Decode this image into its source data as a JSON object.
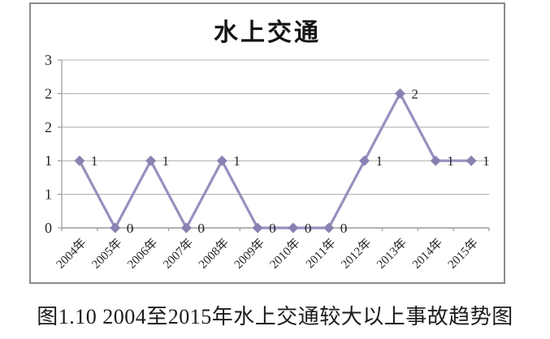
{
  "figure": {
    "caption": "图1.10 2004至2015年水上交通较大以上事故趋势图"
  },
  "chart_data": {
    "type": "line",
    "title": "水上交通",
    "categories": [
      "2004年",
      "2005年",
      "2006年",
      "2007年",
      "2008年",
      "2009年",
      "2010年",
      "2011年",
      "2012年",
      "2013年",
      "2014年",
      "2015年"
    ],
    "values": [
      1,
      0,
      1,
      0,
      1,
      0,
      0,
      0,
      1,
      2,
      1,
      1
    ],
    "point_labels": [
      "1",
      "0",
      "1",
      "0",
      "1",
      "0",
      "0",
      "0",
      "1",
      "2",
      "1",
      "1"
    ],
    "xlabel": "",
    "ylabel": "",
    "ylim": [
      0,
      2.5
    ],
    "y_tick_step": 0.5,
    "y_tick_labels_bottom_to_top": [
      "0",
      "1",
      "1",
      "2",
      "2",
      "3"
    ],
    "grid": "horizontal",
    "legend": "none",
    "marker": "diamond",
    "colors": {
      "line": "#998fbe",
      "marker": "#8a81b2",
      "grid": "#b3b3b3",
      "axis": "#9a9a9a",
      "text": "#262626",
      "frame_border": "#8b8b8b"
    }
  }
}
